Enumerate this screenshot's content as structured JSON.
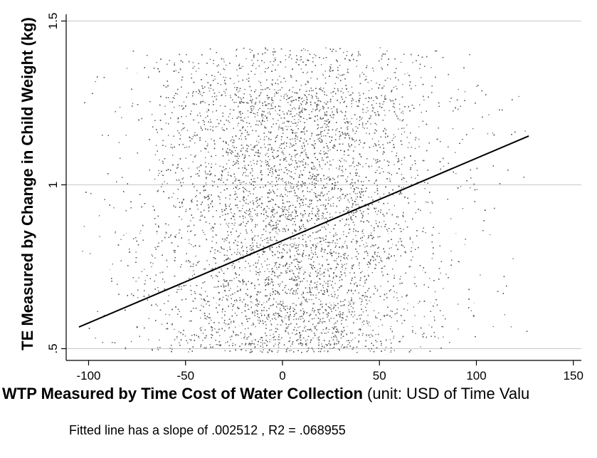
{
  "chart_data": {
    "type": "scatter",
    "xlabel_bold": "WTP Measured by Time Cost of Water Collection",
    "xlabel_unit": "(unit: USD of Time Valu",
    "ylabel": "TE Measured by Change in Child Weight (kg)",
    "xlim": [
      -105,
      152
    ],
    "ylim": [
      0.485,
      1.5
    ],
    "xticks": [
      -100,
      -50,
      0,
      50,
      100,
      150
    ],
    "xtick_labels": [
      "-100",
      "-50",
      "0",
      "50",
      "100",
      "150"
    ],
    "yticks": [
      0.5,
      1,
      1.5
    ],
    "ytick_labels": [
      ".5",
      "1",
      "1.5"
    ],
    "grid": true,
    "point_distribution": {
      "x_range": [
        -105,
        127
      ],
      "x_center": 5,
      "y_range": [
        0.49,
        1.42
      ],
      "dense_x_range": [
        -25,
        125
      ],
      "dense_y_range": [
        0.49,
        1.3
      ]
    },
    "fitted_line": {
      "slope": 0.002512,
      "r2": 0.068955,
      "x": [
        -105,
        127
      ],
      "y": [
        0.566,
        1.149
      ]
    },
    "annotation": "Fitted line has a slope of .002512 , R2 = .068955",
    "colors": {
      "points": "#5c5c5c",
      "fit_line": "#000000",
      "grid": "#c8c8c8",
      "axis": "#000000"
    }
  }
}
